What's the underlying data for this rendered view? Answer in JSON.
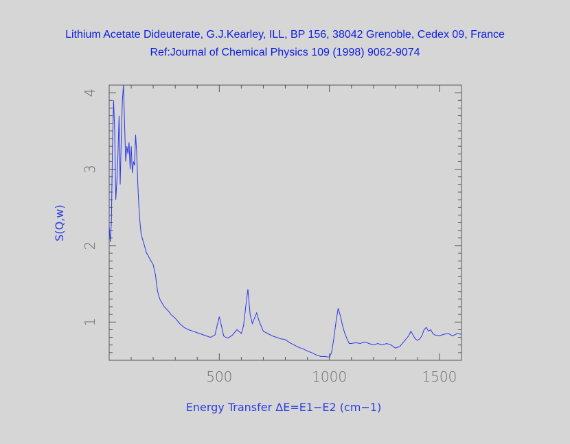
{
  "header": {
    "title_line1": "Lithium Acetate Dideuterate, G.J.Kearley, ILL, BP 156, 38042 Grenoble, Cedex 09, France",
    "title_line2": "Ref:Journal of Chemical Physics 109 (1998) 9062-9074"
  },
  "colors": {
    "background": "#d6d6d6",
    "line": "#2a35e8",
    "text": "#0b1de0",
    "axis": "#555555"
  },
  "chart_data": {
    "type": "line",
    "title": "Lithium Acetate Dideuterate, G.J.Kearley, ILL, BP 156, 38042 Grenoble, Cedex 09, France",
    "subtitle": "Ref:Journal of Chemical Physics 109 (1998) 9062-9074",
    "xlabel": "Energy Transfer ΔE=E1−E2 (cm−1)",
    "ylabel": "S(Q,w)",
    "xlim": [
      0,
      1600
    ],
    "ylim": [
      0.5,
      4.1
    ],
    "x_ticks": [
      500,
      1000,
      1500
    ],
    "y_ticks": [
      1,
      2,
      3,
      4
    ],
    "grid": false,
    "legend": "none",
    "series": [
      {
        "x": [
          0,
          5,
          10,
          15,
          20,
          25,
          30,
          35,
          40,
          45,
          50,
          55,
          60,
          65,
          70,
          75,
          80,
          85,
          90,
          95,
          100,
          105,
          110,
          115,
          120,
          125,
          130,
          135,
          140,
          145,
          150,
          155,
          160,
          165,
          170,
          175,
          180,
          190,
          200,
          210,
          220,
          230,
          240,
          250,
          260,
          270,
          280,
          300,
          320,
          340,
          360,
          380,
          400,
          420,
          440,
          460,
          480,
          490,
          500,
          510,
          520,
          530,
          540,
          560,
          580,
          600,
          610,
          620,
          630,
          640,
          650,
          660,
          670,
          680,
          690,
          700,
          720,
          740,
          760,
          780,
          800,
          820,
          840,
          860,
          880,
          900,
          920,
          940,
          960,
          980,
          1000,
          1010,
          1020,
          1030,
          1040,
          1050,
          1060,
          1070,
          1080,
          1090,
          1100,
          1120,
          1140,
          1160,
          1180,
          1200,
          1220,
          1240,
          1260,
          1280,
          1300,
          1320,
          1340,
          1360,
          1370,
          1380,
          1390,
          1400,
          1410,
          1420,
          1430,
          1440,
          1450,
          1460,
          1470,
          1480,
          1500,
          1520,
          1540,
          1560,
          1580,
          1600
        ],
        "y": [
          2.25,
          2.05,
          2.3,
          3.3,
          3.9,
          3.5,
          2.6,
          2.85,
          3.2,
          3.7,
          2.8,
          3.4,
          3.9,
          4.1,
          3.6,
          3.1,
          3.3,
          3.2,
          3.35,
          3.0,
          3.3,
          2.95,
          3.1,
          3.05,
          3.45,
          3.2,
          2.8,
          2.5,
          2.3,
          2.15,
          2.1,
          2.05,
          2.0,
          1.95,
          1.9,
          1.88,
          1.85,
          1.8,
          1.75,
          1.62,
          1.4,
          1.3,
          1.25,
          1.2,
          1.17,
          1.14,
          1.1,
          1.05,
          0.98,
          0.93,
          0.9,
          0.88,
          0.86,
          0.84,
          0.82,
          0.8,
          0.83,
          0.95,
          1.07,
          0.95,
          0.82,
          0.8,
          0.79,
          0.83,
          0.9,
          0.85,
          0.95,
          1.2,
          1.43,
          1.1,
          0.98,
          1.05,
          1.12,
          1.02,
          0.95,
          0.88,
          0.85,
          0.82,
          0.8,
          0.78,
          0.77,
          0.73,
          0.7,
          0.67,
          0.65,
          0.62,
          0.6,
          0.57,
          0.55,
          0.55,
          0.54,
          0.6,
          0.78,
          1.0,
          1.18,
          1.08,
          0.95,
          0.85,
          0.78,
          0.72,
          0.72,
          0.73,
          0.72,
          0.74,
          0.72,
          0.7,
          0.72,
          0.7,
          0.72,
          0.7,
          0.66,
          0.68,
          0.75,
          0.82,
          0.88,
          0.83,
          0.78,
          0.76,
          0.78,
          0.82,
          0.9,
          0.93,
          0.88,
          0.9,
          0.85,
          0.83,
          0.82,
          0.84,
          0.85,
          0.82,
          0.85,
          0.84
        ]
      }
    ]
  }
}
